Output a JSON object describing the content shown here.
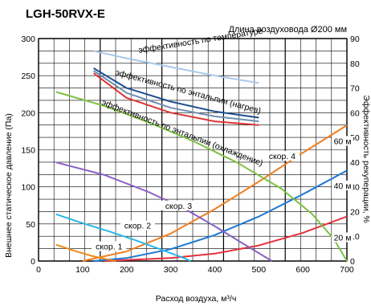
{
  "chart_data": {
    "type": "line",
    "title": "LGH-50RVX-E",
    "subtitle": "Длина воздуховода Ø200 мм",
    "xlabel": "Расход воздуха, м³/ч",
    "ylabel_left": "Внешнее статическое давление (Па)",
    "ylabel_right": "Эффективность рекуперации, %",
    "xlim": [
      0,
      700
    ],
    "ylim_left": [
      0,
      300
    ],
    "ylim_right": [
      0,
      90
    ],
    "x_ticks": [
      "0",
      "100",
      "200",
      "300",
      "400",
      "500",
      "600",
      "700"
    ],
    "y_ticks_left": [
      "0",
      "50",
      "100",
      "150",
      "200",
      "250",
      "300"
    ],
    "y_ticks_right": [
      "0",
      "10",
      "20",
      "30",
      "40",
      "50",
      "60",
      "70",
      "80",
      "90"
    ],
    "grid": true,
    "fan_curves": [
      {
        "name": "скор. 1",
        "color": "#f08a1c",
        "label_pos": [
          160,
          20
        ],
        "points": [
          [
            40,
            22
          ],
          [
            80,
            14
          ],
          [
            120,
            7
          ],
          [
            150,
            3
          ],
          [
            175,
            0
          ]
        ]
      },
      {
        "name": "скор. 2",
        "color": "#29b6e8",
        "label_pos": [
          225,
          48
        ],
        "points": [
          [
            40,
            63
          ],
          [
            100,
            51
          ],
          [
            160,
            40
          ],
          [
            220,
            28
          ],
          [
            280,
            15
          ],
          [
            330,
            4
          ],
          [
            345,
            0
          ]
        ]
      },
      {
        "name": "скор. 3",
        "color": "#8a62c4",
        "label_pos": [
          318,
          75
        ],
        "points": [
          [
            40,
            133
          ],
          [
            150,
            116
          ],
          [
            250,
            93
          ],
          [
            330,
            71
          ],
          [
            400,
            47
          ],
          [
            460,
            25
          ],
          [
            510,
            7
          ],
          [
            530,
            0
          ]
        ]
      },
      {
        "name": "скор. 4",
        "color": "#7cc242",
        "label_pos": [
          553,
          142
        ],
        "points": [
          [
            40,
            228
          ],
          [
            150,
            209
          ],
          [
            250,
            187
          ],
          [
            350,
            162
          ],
          [
            450,
            133
          ],
          [
            550,
            98
          ],
          [
            620,
            64
          ],
          [
            670,
            30
          ],
          [
            700,
            0
          ]
        ]
      }
    ],
    "duct_curves": [
      {
        "name": "20 м",
        "color": "#e6303a",
        "label_pos": [
          690,
          32
        ],
        "points": [
          [
            150,
            0
          ],
          [
            300,
            4
          ],
          [
            400,
            10
          ],
          [
            500,
            21
          ],
          [
            600,
            38
          ],
          [
            700,
            60
          ]
        ]
      },
      {
        "name": "40 м",
        "color": "#1f78d1",
        "label_pos": [
          690,
          102
        ],
        "points": [
          [
            125,
            0
          ],
          [
            200,
            4
          ],
          [
            300,
            16
          ],
          [
            400,
            35
          ],
          [
            500,
            60
          ],
          [
            600,
            90
          ],
          [
            700,
            122
          ]
        ]
      },
      {
        "name": "60 м",
        "color": "#f07d1c",
        "label_pos": [
          690,
          162
        ],
        "points": [
          [
            100,
            0
          ],
          [
            200,
            13
          ],
          [
            300,
            37
          ],
          [
            400,
            70
          ],
          [
            500,
            107
          ],
          [
            600,
            146
          ],
          [
            700,
            183
          ]
        ]
      }
    ],
    "efficiency_curves": [
      {
        "name": "эффективность по температуре",
        "color": "#a8c8ea",
        "points": [
          [
            125,
            85
          ],
          [
            200,
            82
          ],
          [
            300,
            78.5
          ],
          [
            400,
            75
          ],
          [
            500,
            72
          ]
        ]
      },
      {
        "name": "эффективность по энтальпии (нагрев)",
        "color": "#1f4f8f",
        "points": [
          [
            125,
            78
          ],
          [
            200,
            70
          ],
          [
            300,
            64.5
          ],
          [
            400,
            60.5
          ],
          [
            500,
            58
          ]
        ]
      },
      {
        "name": "эффективность по энтальпии (охлаждение)",
        "color": "#dd3333",
        "points": [
          [
            125,
            76
          ],
          [
            200,
            66
          ],
          [
            300,
            60
          ],
          [
            400,
            56.5
          ],
          [
            500,
            55
          ]
        ]
      },
      {
        "name": "",
        "color": "#6f8fb0",
        "points": [
          [
            125,
            77
          ],
          [
            200,
            68
          ],
          [
            300,
            62
          ],
          [
            400,
            58.5
          ],
          [
            500,
            56.5
          ]
        ]
      }
    ]
  }
}
